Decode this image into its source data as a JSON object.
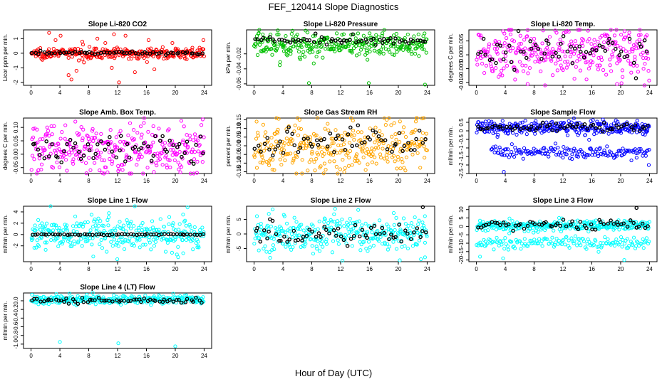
{
  "figure": {
    "title": "FEF_120414  Slope Diagnostics",
    "xlabel": "Hour of Day (UTC)"
  },
  "chart_data": [
    {
      "type": "scatter",
      "title": "Slope Li-820 CO2",
      "ylabel": "Licor ppm per min.",
      "xlim": [
        0,
        24
      ],
      "ylim": [
        -2.2,
        1.6
      ],
      "yticks": [
        -2,
        -1,
        0,
        1
      ],
      "ytick_labels": [
        "-2",
        "-1",
        "0",
        "1"
      ],
      "xticks": [
        0,
        4,
        8,
        12,
        16,
        20,
        24
      ],
      "xtick_labels": [
        "0",
        "4",
        "8",
        "12",
        "16",
        "20",
        "24"
      ],
      "color": "#ff0000",
      "noise_center": 0.0,
      "noise_spread": 0.18,
      "outliers": [
        [
          2.5,
          1.4
        ],
        [
          3.4,
          0.9
        ],
        [
          4.1,
          1.2
        ],
        [
          5.2,
          -1.5
        ],
        [
          5.6,
          -1.8
        ],
        [
          6.3,
          -1.2
        ],
        [
          7.1,
          0.8
        ],
        [
          9.2,
          1.0
        ],
        [
          10.3,
          0.7
        ],
        [
          11.2,
          -1.0
        ],
        [
          11.5,
          1.3
        ],
        [
          12.2,
          -2.0
        ],
        [
          13.1,
          1.2
        ],
        [
          14.4,
          -1.3
        ],
        [
          16.3,
          0.9
        ],
        [
          17.1,
          -1.1
        ],
        [
          19.6,
          0.7
        ],
        [
          23.9,
          0.9
        ]
      ],
      "black_center": 0.02,
      "black_spread": 0.05
    },
    {
      "type": "scatter",
      "title": "Slope Li-820 Pressure",
      "ylabel": "kPa per min.",
      "xlim": [
        0,
        24
      ],
      "ylim": [
        -0.062,
        0.012
      ],
      "yticks": [
        -0.06,
        -0.04,
        -0.02
      ],
      "ytick_labels": [
        "-0.06",
        "-0.04",
        "-0.02"
      ],
      "xticks": [
        0,
        4,
        8,
        12,
        16,
        20,
        24
      ],
      "xtick_labels": [
        "0",
        "4",
        "8",
        "12",
        "16",
        "20",
        "24"
      ],
      "color": "#00c000",
      "noise_center": -0.008,
      "noise_spread": 0.009,
      "outliers": [
        [
          7.6,
          -0.059
        ],
        [
          15.9,
          -0.059
        ],
        [
          23.7,
          -0.061
        ],
        [
          0.6,
          0.007
        ],
        [
          1.2,
          0.006
        ],
        [
          22.8,
          0.006
        ]
      ],
      "black_center": -0.001,
      "black_spread": 0.003
    },
    {
      "type": "scatter",
      "title": "Slope Li-820 Temp.",
      "ylabel": "degrees C per min.",
      "xlim": [
        0,
        24
      ],
      "ylim": [
        -0.011,
        0.009
      ],
      "yticks": [
        -0.01,
        -0.005,
        0.0,
        0.005
      ],
      "ytick_labels": [
        "-0.010",
        "-0.005",
        "0.000",
        "0.005"
      ],
      "xticks": [
        0,
        4,
        8,
        12,
        16,
        20,
        24
      ],
      "xtick_labels": [
        "0",
        "4",
        "8",
        "12",
        "16",
        "20",
        "24"
      ],
      "color": "#ff00ff",
      "noise_center": 0.001,
      "noise_spread": 0.0045,
      "outliers": [
        [
          3.7,
          0.0085
        ],
        [
          7.1,
          -0.0105
        ],
        [
          19.5,
          -0.0105
        ],
        [
          21.2,
          0.008
        ]
      ],
      "black_center": 0.0015,
      "black_spread": 0.003
    },
    {
      "type": "scatter",
      "title": "Slope Amb. Box Temp.",
      "ylabel": "degrees C per min.",
      "xlim": [
        0,
        24
      ],
      "ylim": [
        -0.072,
        0.135
      ],
      "yticks": [
        -0.05,
        0.0,
        0.05,
        0.1
      ],
      "ytick_labels": [
        "-0.05",
        "0.00",
        "0.05",
        "0.10"
      ],
      "xticks": [
        0,
        4,
        8,
        12,
        16,
        20,
        24
      ],
      "xtick_labels": [
        "0",
        "4",
        "8",
        "12",
        "16",
        "20",
        "24"
      ],
      "color": "#ff00ff",
      "noise_center": 0.015,
      "noise_spread": 0.045,
      "outliers": [
        [
          23.8,
          0.13
        ],
        [
          1.0,
          -0.06
        ],
        [
          9.5,
          -0.06
        ]
      ],
      "black_center": 0.02,
      "black_spread": 0.03
    },
    {
      "type": "scatter",
      "title": "Slope Gas Stream RH",
      "ylabel": "percent per min.",
      "xlim": [
        0,
        24
      ],
      "ylim": [
        -0.16,
        0.16
      ],
      "yticks": [
        -0.15,
        -0.1,
        -0.05,
        0.0,
        0.05,
        0.1,
        0.15
      ],
      "ytick_labels": [
        "-0.15",
        "-0.10",
        "-0.05",
        "0.00",
        "0.05",
        "0.10",
        "0.15"
      ],
      "xticks": [
        0,
        4,
        8,
        12,
        16,
        20,
        24
      ],
      "xtick_labels": [
        "0",
        "4",
        "8",
        "12",
        "16",
        "20",
        "24"
      ],
      "color": "#ffa500",
      "noise_center": 0.0,
      "noise_spread": 0.075,
      "outliers": [
        [
          2.8,
          -0.14
        ],
        [
          12.5,
          -0.15
        ],
        [
          6.3,
          0.15
        ],
        [
          18.4,
          0.15
        ],
        [
          20.3,
          -0.13
        ]
      ],
      "black_center": 0.02,
      "black_spread": 0.05
    },
    {
      "type": "scatter",
      "title": "Slope Sample Flow",
      "ylabel": "ml/min per min.",
      "xlim": [
        0,
        24
      ],
      "ylim": [
        -2.5,
        0.75
      ],
      "yticks": [
        -2.5,
        -2.0,
        -1.5,
        -1.0,
        -0.5,
        0.0,
        0.5
      ],
      "ytick_labels": [
        "-2.5",
        "-2",
        "-1.5",
        "-1",
        "-0.5",
        "0",
        "0.5"
      ],
      "xticks": [
        0,
        4,
        8,
        12,
        16,
        20,
        24
      ],
      "xtick_labels": [
        "0",
        "4",
        "8",
        "12",
        "16",
        "20",
        "24"
      ],
      "color": "#0000ff",
      "noise_center": 0.2,
      "noise_spread": 0.2,
      "second_band_center": -1.25,
      "second_band_spread": 0.18,
      "second_band_xrange": [
        2,
        24
      ],
      "outliers": [
        [
          3.8,
          -2.4
        ],
        [
          23.9,
          -2.0
        ],
        [
          22.3,
          0.6
        ]
      ],
      "black_center": 0.22,
      "black_spread": 0.12
    },
    {
      "type": "scatter",
      "title": "Slope Line 1 Flow",
      "ylabel": "ml/min per min.",
      "xlim": [
        0,
        24
      ],
      "ylim": [
        -4.8,
        5.0
      ],
      "yticks": [
        -2,
        0,
        2,
        4
      ],
      "ytick_labels": [
        "-2",
        "0",
        "2",
        "4"
      ],
      "xticks": [
        0,
        4,
        8,
        12,
        16,
        20,
        24
      ],
      "xtick_labels": [
        "0",
        "4",
        "8",
        "12",
        "16",
        "20",
        "24"
      ],
      "color": "#00ffff",
      "noise_center": 0.0,
      "noise_spread": 1.4,
      "outliers": [
        [
          21.7,
          4.8
        ],
        [
          20.4,
          -4.0
        ],
        [
          21.1,
          -3.3
        ]
      ],
      "black_center": 0.0,
      "black_spread": 0.05
    },
    {
      "type": "scatter",
      "title": "Slope Line 2 Flow",
      "ylabel": "ml/min per min.",
      "xlim": [
        0,
        24
      ],
      "ylim": [
        -9.5,
        9.5
      ],
      "yticks": [
        -5,
        0,
        5
      ],
      "ytick_labels": [
        "-5",
        "0",
        "5"
      ],
      "xticks": [
        0,
        4,
        8,
        12,
        16,
        20,
        24
      ],
      "xtick_labels": [
        "0",
        "4",
        "8",
        "12",
        "16",
        "20",
        "24"
      ],
      "color": "#00ffff",
      "noise_center": 0.0,
      "noise_spread": 3.0,
      "outliers": [
        [
          20.2,
          -9.0
        ],
        [
          23.7,
          -8.0
        ]
      ],
      "black_center": 0.0,
      "black_spread": 1.5,
      "black_extra": [
        [
          23.4,
          9.2
        ],
        [
          2.2,
          5.0
        ]
      ]
    },
    {
      "type": "scatter",
      "title": "Slope Line 3 Flow",
      "ylabel": "ml/min per min.",
      "xlim": [
        0,
        24
      ],
      "ylim": [
        -21,
        12
      ],
      "yticks": [
        -20,
        -15,
        -10,
        -5,
        0,
        5,
        10
      ],
      "ytick_labels": [
        "-20",
        "-15",
        "-10",
        "-5",
        "0",
        "5",
        "10"
      ],
      "xticks": [
        0,
        4,
        8,
        12,
        16,
        20,
        24
      ],
      "xtick_labels": [
        "0",
        "4",
        "8",
        "12",
        "16",
        "20",
        "24"
      ],
      "color": "#00ffff",
      "noise_center": 0.5,
      "noise_spread": 1.5,
      "second_band_center": -10.0,
      "second_band_spread": 2.0,
      "second_band_xrange": [
        0,
        24
      ],
      "outliers": [
        [
          0.5,
          -18
        ],
        [
          3.7,
          -19
        ],
        [
          20.5,
          -20
        ]
      ],
      "black_center": 1.0,
      "black_spread": 1.5,
      "black_extra": [
        [
          22.2,
          11.0
        ]
      ]
    },
    {
      "type": "scatter",
      "title": "Slope Line 4 (LT) Flow",
      "ylabel": "ml/min per min.",
      "xlim": [
        0,
        24
      ],
      "ylim": [
        -1.1,
        0.18
      ],
      "yticks": [
        -1.0,
        -0.8,
        -0.6,
        -0.4,
        -0.2,
        0.0
      ],
      "ytick_labels": [
        "-1.0",
        "-0.8",
        "-0.6",
        "-0.4",
        "-0.2",
        "0.0"
      ],
      "xticks": [
        0,
        4,
        8,
        12,
        16,
        20,
        24
      ],
      "xtick_labels": [
        "0",
        "4",
        "8",
        "12",
        "16",
        "20",
        "24"
      ],
      "color": "#00ffff",
      "noise_center": 0.03,
      "noise_spread": 0.05,
      "outliers": [
        [
          4.0,
          -0.95
        ],
        [
          12.1,
          -0.98
        ],
        [
          20.0,
          -1.05
        ]
      ],
      "black_center": 0.0,
      "black_spread": 0.03
    }
  ]
}
